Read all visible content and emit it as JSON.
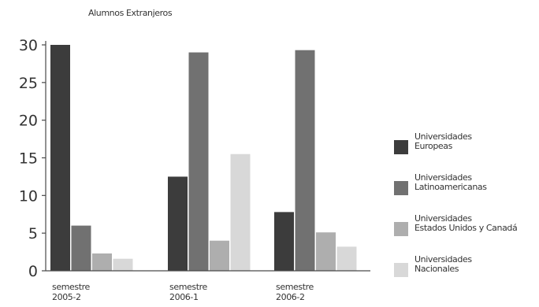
{
  "chart_data": {
    "type": "bar",
    "title": "Alumnos Extranjeros",
    "categories": [
      [
        "semestre",
        "2005-2"
      ],
      [
        "semestre",
        "2006-1"
      ],
      [
        "semestre",
        "2006-2"
      ]
    ],
    "series": [
      {
        "name": [
          "Universidades",
          "Europeas"
        ],
        "values": [
          30,
          12.5,
          7.8
        ],
        "color": "#3c3c3c"
      },
      {
        "name": [
          "Universidades",
          "Latinoamericanas"
        ],
        "values": [
          6,
          29,
          29.3
        ],
        "color": "#717171"
      },
      {
        "name": [
          "Universidades",
          "Estados Unidos y Canadá"
        ],
        "values": [
          2.3,
          4,
          5.1
        ],
        "color": "#aeaeae"
      },
      {
        "name": [
          "Universidades",
          "Nacionales"
        ],
        "values": [
          1.6,
          15.5,
          3.2
        ],
        "color": "#d8d8d8"
      }
    ],
    "yticks": [
      "0",
      "5",
      "10",
      "15",
      "20",
      "25",
      "30"
    ],
    "ylim": [
      0,
      30
    ],
    "legend_position": "right"
  }
}
